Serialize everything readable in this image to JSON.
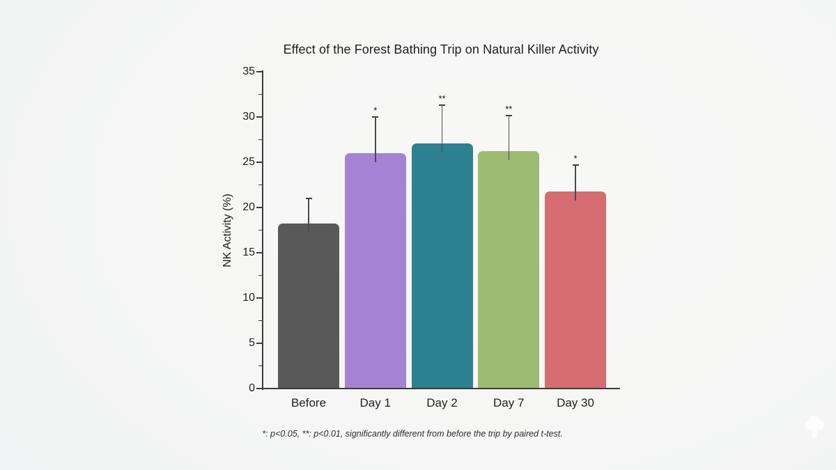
{
  "window": {
    "background_center": "#f8f8f6",
    "background_edge": "#eceff0"
  },
  "chart_data": {
    "type": "bar",
    "title": "Effect of the Forest Bathing Trip on Natural Killer Activity",
    "xlabel": "",
    "ylabel": "NK Activity (%)",
    "categories": [
      "Before",
      "Day 1",
      "Day 2",
      "Day 7",
      "Day 30"
    ],
    "values": [
      18.2,
      26.0,
      27.1,
      26.2,
      21.8
    ],
    "error_plus": [
      2.9,
      4.1,
      4.3,
      4.0,
      3.0
    ],
    "significance": [
      "",
      "*",
      "**",
      "**",
      "*"
    ],
    "bar_colors": [
      "#595959",
      "#a583d4",
      "#2e8190",
      "#9dbb73",
      "#d56d73"
    ],
    "ylim": [
      0,
      35
    ],
    "ytick_step": 5,
    "yminor_step": 2.5,
    "grid": false,
    "legend_position": "none",
    "axis_color": "#3b3b3b",
    "text_color": "#1d1d1d",
    "footnote": "*: p<0.05, **: p<0.01, significantly different from before the trip by paired t-test."
  },
  "watermark": {
    "icon": "tree-icon",
    "color": "#ffffff"
  }
}
